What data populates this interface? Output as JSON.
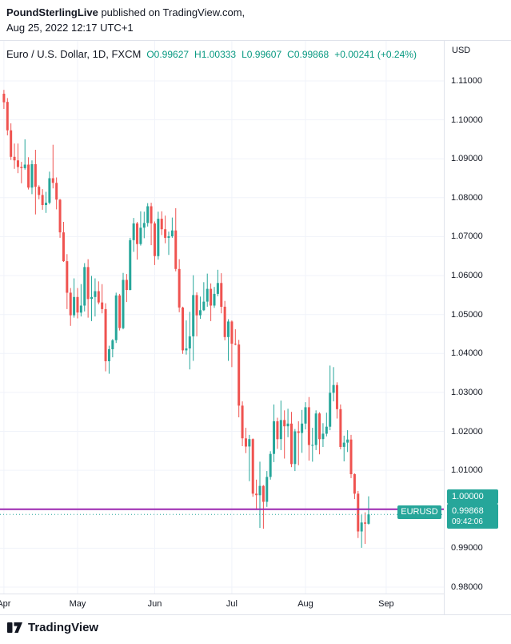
{
  "attribution": {
    "publisher": "PoundSterlingLive",
    "suffix": " published on TradingView.com,",
    "datetime": "Aug 25, 2022 12:17 UTC+1"
  },
  "header": {
    "symbol_title": "Euro / U.S. Dollar, 1D, FXCM",
    "ohlc": [
      {
        "key": "open",
        "label": "O",
        "value": "0.99627"
      },
      {
        "key": "high",
        "label": "H",
        "value": "1.00333"
      },
      {
        "key": "low",
        "label": "L",
        "value": "0.99607"
      },
      {
        "key": "close",
        "label": "C",
        "value": "0.99868"
      }
    ],
    "change": "+0.00241 (+0.24%)"
  },
  "symbol_label": "EURUSD",
  "price_scale": {
    "currency": "USD",
    "labels": [
      "1.11000",
      "1.10000",
      "1.09000",
      "1.08000",
      "1.07000",
      "1.06000",
      "1.05000",
      "1.04000",
      "1.03000",
      "1.02000",
      "1.01000",
      "1.00000",
      "0.99000",
      "0.98000"
    ],
    "level_label": "1.00000",
    "last_price": "0.99868",
    "countdown": "09:42:06"
  },
  "footer": {
    "brand": "TradingView"
  },
  "colors": {
    "up": "#26a69a",
    "down": "#ef5350",
    "accent_text": "#089981",
    "grid": "#f0f3fa",
    "level_line": "#9c27b0",
    "text": "#131722",
    "border": "#e0e3eb",
    "label_bg": "#26a69a"
  },
  "chart_data": {
    "type": "candlestick",
    "title": "Euro / U.S. Dollar, 1D, FXCM",
    "symbol": "EURUSD",
    "interval": "1D",
    "exchange": "FXCM",
    "ylabel": "USD",
    "ylim": [
      0.97835,
      1.12028
    ],
    "grid": true,
    "price_gridlines": [
      0.98,
      0.99,
      1.0,
      1.01,
      1.02,
      1.03,
      1.04,
      1.05,
      1.06,
      1.07,
      1.08,
      1.09,
      1.1,
      1.11
    ],
    "months": [
      {
        "label": "Apr",
        "index": 0
      },
      {
        "label": "May",
        "index": 21
      },
      {
        "label": "Jun",
        "index": 43
      },
      {
        "label": "Jul",
        "index": 65
      },
      {
        "label": "Aug",
        "index": 86
      },
      {
        "label": "Sep",
        "index": 109
      }
    ],
    "horizontal_line": {
      "price": 1.0,
      "label": "1.00000"
    },
    "last_price_line": {
      "price": 0.99868,
      "label": "0.99868"
    },
    "candles": [
      [
        1.1067,
        1.1077,
        1.1028,
        1.1045
      ],
      [
        1.1046,
        1.1056,
        1.096,
        1.0973
      ],
      [
        1.0973,
        1.0991,
        1.0897,
        1.0905
      ],
      [
        1.0905,
        1.0939,
        1.0874,
        1.0896
      ],
      [
        1.0896,
        1.0939,
        1.0863,
        1.0879
      ],
      [
        1.0879,
        1.0892,
        1.0837,
        1.0876
      ],
      [
        1.0876,
        1.095,
        1.0872,
        1.0885
      ],
      [
        1.0885,
        1.0904,
        1.0821,
        1.0826
      ],
      [
        1.0826,
        1.0896,
        1.0809,
        1.0886
      ],
      [
        1.0886,
        1.0923,
        1.0757,
        1.0828
      ],
      [
        1.0828,
        1.0832,
        1.0796,
        1.0807
      ],
      [
        1.0807,
        1.0822,
        1.0769,
        1.0781
      ],
      [
        1.0781,
        1.0815,
        1.0761,
        1.0787
      ],
      [
        1.0787,
        1.0867,
        1.0783,
        1.085
      ],
      [
        1.085,
        1.0936,
        1.0824,
        1.0838
      ],
      [
        1.0838,
        1.0852,
        1.077,
        1.0795
      ],
      [
        1.0795,
        1.0797,
        1.0697,
        1.0711
      ],
      [
        1.0711,
        1.0738,
        1.0635,
        1.0637
      ],
      [
        1.0637,
        1.0655,
        1.0514,
        1.0556
      ],
      [
        1.0556,
        1.0568,
        1.0471,
        1.0498
      ],
      [
        1.0498,
        1.0593,
        1.0492,
        1.0545
      ],
      [
        1.0545,
        1.0568,
        1.049,
        1.0505
      ],
      [
        1.0505,
        1.0578,
        1.0495,
        1.0523
      ],
      [
        1.0523,
        1.0632,
        1.0508,
        1.0622
      ],
      [
        1.0622,
        1.0642,
        1.0492,
        1.054
      ],
      [
        1.054,
        1.0599,
        1.0483,
        1.0545
      ],
      [
        1.0545,
        1.0593,
        1.0495,
        1.056
      ],
      [
        1.056,
        1.0585,
        1.0526,
        1.0531
      ],
      [
        1.0531,
        1.0578,
        1.0503,
        1.0514
      ],
      [
        1.0514,
        1.0529,
        1.0354,
        1.038
      ],
      [
        1.038,
        1.042,
        1.0348,
        1.0411
      ],
      [
        1.0411,
        1.0437,
        1.039,
        1.0434
      ],
      [
        1.0434,
        1.0556,
        1.0427,
        1.0549
      ],
      [
        1.0549,
        1.0553,
        1.0459,
        1.0465
      ],
      [
        1.0465,
        1.0607,
        1.0462,
        1.0589
      ],
      [
        1.0589,
        1.0604,
        1.0532,
        1.0563
      ],
      [
        1.0563,
        1.0697,
        1.0562,
        1.0691
      ],
      [
        1.0691,
        1.0748,
        1.0661,
        1.0734
      ],
      [
        1.0734,
        1.0738,
        1.0641,
        1.0681
      ],
      [
        1.0681,
        1.0765,
        1.0677,
        1.0723
      ],
      [
        1.0723,
        1.0764,
        1.0696,
        1.0735
      ],
      [
        1.0735,
        1.0786,
        1.0726,
        1.0778
      ],
      [
        1.0778,
        1.0787,
        1.0678,
        1.0734
      ],
      [
        1.0734,
        1.0739,
        1.0627,
        1.065
      ],
      [
        1.065,
        1.0764,
        1.0641,
        1.0746
      ],
      [
        1.0746,
        1.0765,
        1.0704,
        1.0719
      ],
      [
        1.0719,
        1.0754,
        1.0683,
        1.0697
      ],
      [
        1.0697,
        1.0713,
        1.0653,
        1.0701
      ],
      [
        1.0701,
        1.0749,
        1.0697,
        1.0716
      ],
      [
        1.0716,
        1.0773,
        1.0611,
        1.0617
      ],
      [
        1.0617,
        1.0642,
        1.0506,
        1.0518
      ],
      [
        1.0518,
        1.052,
        1.0399,
        1.0408
      ],
      [
        1.0408,
        1.0485,
        1.0397,
        1.0413
      ],
      [
        1.0413,
        1.0507,
        1.0359,
        1.0444
      ],
      [
        1.0444,
        1.0601,
        1.0381,
        1.055
      ],
      [
        1.055,
        1.0557,
        1.0444,
        1.0498
      ],
      [
        1.0498,
        1.0546,
        1.0489,
        1.0511
      ],
      [
        1.0511,
        1.0583,
        1.0509,
        1.0533
      ],
      [
        1.0533,
        1.0605,
        1.052,
        1.0566
      ],
      [
        1.0566,
        1.058,
        1.0483,
        1.0523
      ],
      [
        1.0523,
        1.0571,
        1.0517,
        1.0553
      ],
      [
        1.0553,
        1.0615,
        1.0547,
        1.0581
      ],
      [
        1.0581,
        1.0606,
        1.0503,
        1.052
      ],
      [
        1.052,
        1.0535,
        1.0434,
        1.0442
      ],
      [
        1.0442,
        1.0488,
        1.0381,
        1.0482
      ],
      [
        1.0482,
        1.0485,
        1.0365,
        1.0425
      ],
      [
        1.0425,
        1.0462,
        1.0421,
        1.0423
      ],
      [
        1.0423,
        1.0435,
        1.0236,
        1.0266
      ],
      [
        1.0266,
        1.0277,
        1.0162,
        1.0182
      ],
      [
        1.0182,
        1.0209,
        1.0144,
        1.0161
      ],
      [
        1.0161,
        1.0191,
        1.0072,
        1.018
      ],
      [
        1.018,
        1.0182,
        1.0032,
        1.004
      ],
      [
        1.004,
        1.0076,
        0.9998,
        1.0036
      ],
      [
        1.0036,
        1.0122,
        0.9952,
        1.006
      ],
      [
        1.006,
        1.0062,
        0.995,
        1.0019
      ],
      [
        1.0019,
        1.0098,
        1.0006,
        1.0083
      ],
      [
        1.0083,
        1.0149,
        1.0076,
        1.0142
      ],
      [
        1.0142,
        1.0269,
        1.0121,
        1.0226
      ],
      [
        1.0226,
        1.0235,
        1.0155,
        1.018
      ],
      [
        1.018,
        1.0279,
        1.0152,
        1.0229
      ],
      [
        1.0229,
        1.0254,
        1.013,
        1.0213
      ],
      [
        1.0213,
        1.0258,
        1.0185,
        1.022
      ],
      [
        1.022,
        1.025,
        1.0108,
        1.0116
      ],
      [
        1.0116,
        1.0206,
        1.0098,
        1.02
      ],
      [
        1.02,
        1.0226,
        1.0113,
        1.0196
      ],
      [
        1.0196,
        1.0255,
        1.0145,
        1.022
      ],
      [
        1.022,
        1.0275,
        1.0205,
        1.0262
      ],
      [
        1.0262,
        1.0288,
        1.0125,
        1.0165
      ],
      [
        1.0165,
        1.0209,
        1.0122,
        1.0165
      ],
      [
        1.0165,
        1.0254,
        1.0152,
        1.0246
      ],
      [
        1.0246,
        1.0249,
        1.0141,
        1.018
      ],
      [
        1.018,
        1.0221,
        1.016,
        1.0194
      ],
      [
        1.0194,
        1.0248,
        1.0187,
        1.0212
      ],
      [
        1.0212,
        1.0369,
        1.0203,
        1.0299
      ],
      [
        1.0299,
        1.0365,
        1.0277,
        1.0319
      ],
      [
        1.0319,
        1.0326,
        1.0233,
        1.0257
      ],
      [
        1.0257,
        1.0269,
        1.0154,
        1.016
      ],
      [
        1.016,
        1.0189,
        1.0123,
        1.0171
      ],
      [
        1.0171,
        1.0203,
        1.0147,
        1.0179
      ],
      [
        1.0179,
        1.0191,
        1.008,
        1.009
      ],
      [
        1.009,
        1.0092,
        1.0026,
        1.004
      ],
      [
        1.004,
        1.0047,
        0.9926,
        0.9943
      ],
      [
        0.9943,
        0.9985,
        0.9901,
        0.9966
      ],
      [
        0.9966,
        0.9992,
        0.9911,
        0.9963
      ],
      [
        0.99627,
        1.00333,
        0.99607,
        0.99868
      ]
    ]
  }
}
